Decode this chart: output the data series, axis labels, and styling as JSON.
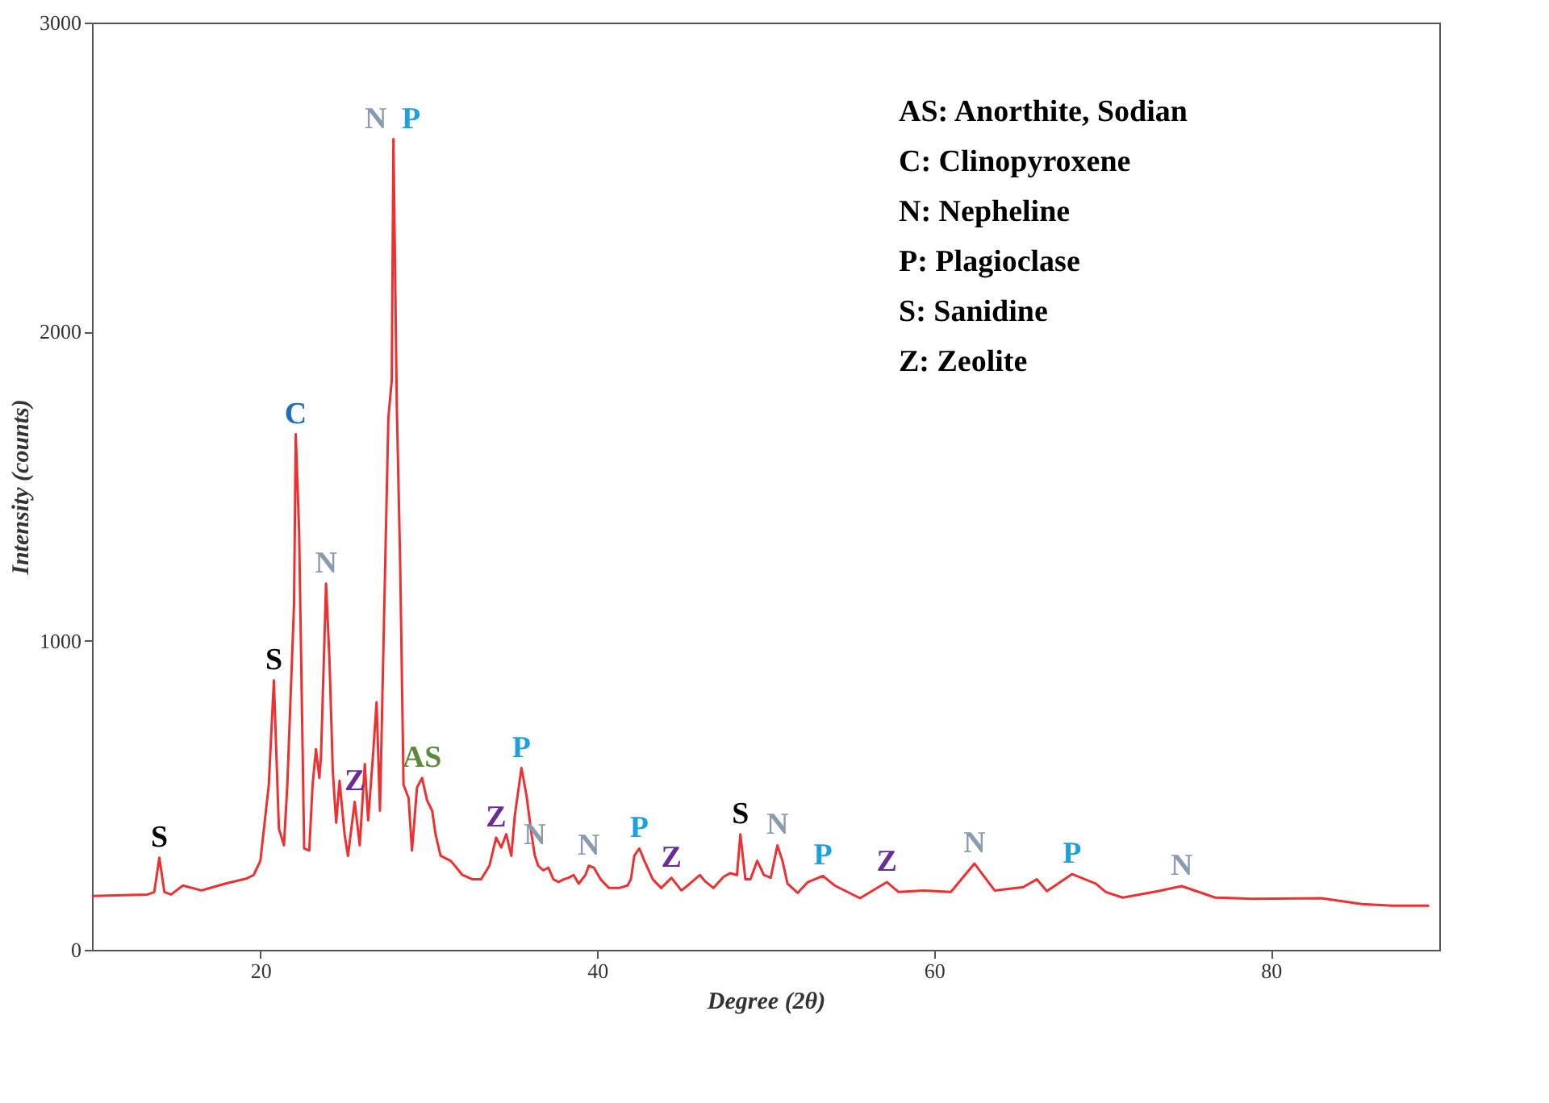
{
  "chart_data": {
    "type": "line",
    "xlabel": "Degree (2θ)",
    "ylabel": "Intensity (counts)",
    "xlim": [
      10,
      90
    ],
    "xticks": [
      20,
      40,
      60,
      80
    ],
    "ylim": [
      0,
      3000
    ],
    "yticks": [
      0,
      1000,
      2000,
      3000
    ],
    "grid": false,
    "marker": "none",
    "line_style": "solid",
    "series": [
      {
        "color": "#f03030",
        "x": [
          10.0,
          13.3,
          13.7,
          14.0,
          14.3,
          14.7,
          15.4,
          16.5,
          17.9,
          19.2,
          19.6,
          20.0,
          20.5,
          20.8,
          21.1,
          21.4,
          21.6,
          22.0,
          22.1,
          22.3,
          22.6,
          22.9,
          23.1,
          23.3,
          23.5,
          23.6,
          23.9,
          24.1,
          24.3,
          24.5,
          24.7,
          25.0,
          25.2,
          25.6,
          25.9,
          26.2,
          26.4,
          26.7,
          26.9,
          27.1,
          27.4,
          27.6,
          27.8,
          27.9,
          28.1,
          28.3,
          28.5,
          28.8,
          29.0,
          29.3,
          29.6,
          29.9,
          30.2,
          30.4,
          30.7,
          31.3,
          32.0,
          32.6,
          33.1,
          33.6,
          34.0,
          34.3,
          34.6,
          34.9,
          35.1,
          35.5,
          35.8,
          36.1,
          36.3,
          36.5,
          36.8,
          37.1,
          37.4,
          37.7,
          38.0,
          38.3,
          38.6,
          38.9,
          39.3,
          39.5,
          39.8,
          40.2,
          40.7,
          41.3,
          41.8,
          42.0,
          42.2,
          42.5,
          42.8,
          43.3,
          43.8,
          44.4,
          45.0,
          45.5,
          46.1,
          46.4,
          46.9,
          47.5,
          47.9,
          48.3,
          48.5,
          48.8,
          49.1,
          49.5,
          49.9,
          50.3,
          50.7,
          51.0,
          51.3,
          51.9,
          52.5,
          53.4,
          54.1,
          55.6,
          57.2,
          57.9,
          59.4,
          61.0,
          62.4,
          63.6,
          65.3,
          66.1,
          66.7,
          68.2,
          69.6,
          70.2,
          71.2,
          73.3,
          74.7,
          76.7,
          78.9,
          83.0,
          85.4,
          87.2,
          89.4
        ],
        "values": [
          174,
          179,
          187,
          298,
          187,
          179,
          208,
          192,
          214,
          231,
          242,
          288,
          534,
          872,
          392,
          338,
          534,
          1121,
          1668,
          1353,
          328,
          321,
          534,
          649,
          556,
          625,
          1185,
          940,
          579,
          411,
          547,
          374,
          304,
          479,
          338,
          601,
          419,
          639,
          801,
          450,
          1218,
          1722,
          1842,
          2623,
          1762,
          1251,
          534,
          491,
          321,
          525,
          556,
          483,
          450,
          374,
          304,
          288,
          242,
          228,
          228,
          272,
          363,
          331,
          374,
          304,
          431,
          588,
          500,
          374,
          304,
          272,
          257,
          266,
          228,
          219,
          228,
          233,
          242,
          214,
          242,
          272,
          266,
          228,
          200,
          200,
          208,
          228,
          304,
          328,
          288,
          228,
          200,
          233,
          192,
          214,
          242,
          222,
          200,
          236,
          248,
          242,
          374,
          228,
          228,
          288,
          242,
          233,
          338,
          288,
          214,
          184,
          219,
          239,
          208,
          167,
          219,
          187,
          192,
          187,
          279,
          192,
          203,
          228,
          190,
          245,
          214,
          187,
          169,
          190,
          206,
          169,
          165,
          167,
          148,
          143,
          143
        ]
      }
    ],
    "annotations": [
      {
        "text": "S",
        "x": 14.0,
        "y": 298
      },
      {
        "text": "S",
        "x": 20.8,
        "y": 872
      },
      {
        "text": "C",
        "x": 22.1,
        "y": 1668
      },
      {
        "text": "N",
        "x": 23.9,
        "y": 1185
      },
      {
        "text": "Z",
        "x": 25.6,
        "y": 479
      },
      {
        "text": "N",
        "x": 27.9,
        "y": 2623
      },
      {
        "text": "P",
        "x": 27.9,
        "y": 2623
      },
      {
        "text": "AS",
        "x": 29.6,
        "y": 556
      },
      {
        "text": "Z",
        "x": 34.0,
        "y": 363
      },
      {
        "text": "P",
        "x": 35.5,
        "y": 588
      },
      {
        "text": "N",
        "x": 36.3,
        "y": 304
      },
      {
        "text": "N",
        "x": 39.5,
        "y": 272
      },
      {
        "text": "P",
        "x": 42.5,
        "y": 328
      },
      {
        "text": "Z",
        "x": 44.4,
        "y": 233
      },
      {
        "text": "S",
        "x": 48.5,
        "y": 374
      },
      {
        "text": "N",
        "x": 50.7,
        "y": 338
      },
      {
        "text": "P",
        "x": 53.4,
        "y": 239
      },
      {
        "text": "Z",
        "x": 57.2,
        "y": 219
      },
      {
        "text": "N",
        "x": 62.4,
        "y": 279
      },
      {
        "text": "P",
        "x": 68.2,
        "y": 245
      },
      {
        "text": "N",
        "x": 74.7,
        "y": 206
      },
      "AS: Anorthite, Sodian",
      "C: Clinopyroxene",
      "N: Nepheline",
      "P: Plagioclase",
      "S: Sanidine",
      "Z: Zeolite"
    ]
  }
}
